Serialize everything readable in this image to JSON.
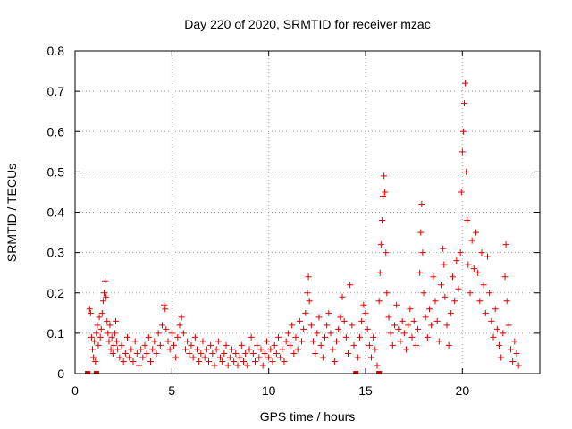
{
  "chart_data": {
    "type": "scatter",
    "title": "Day 220 of 2020, SRMTID for receiver mzac",
    "xlabel": "GPS time / hours",
    "ylabel": "SRMTID / TECUs",
    "xlim": [
      0,
      24
    ],
    "ylim": [
      0,
      0.8
    ],
    "xticks": [
      0,
      5,
      10,
      15,
      20
    ],
    "yticks": [
      0,
      0.1,
      0.2,
      0.3,
      0.4,
      0.5,
      0.6,
      0.7,
      0.8
    ],
    "x_tick_labels": [
      "0",
      "5",
      "10",
      "15",
      "20"
    ],
    "y_tick_labels": [
      "0",
      "0.1",
      "0.2",
      "0.3",
      "0.4",
      "0.5",
      "0.6",
      "0.7",
      "0.8"
    ],
    "grid": true,
    "marker": "+",
    "color": "#dd0000",
    "zero_markers_x": [
      0.65,
      1.1,
      14.5,
      15.7
    ],
    "series": [
      {
        "name": "SRMTID",
        "points": [
          [
            0.75,
            0.16
          ],
          [
            0.8,
            0.15
          ],
          [
            0.85,
            0.09
          ],
          [
            0.9,
            0.06
          ],
          [
            0.95,
            0.04
          ],
          [
            1.0,
            0.08
          ],
          [
            1.05,
            0.03
          ],
          [
            1.1,
            0.1
          ],
          [
            1.15,
            0.12
          ],
          [
            1.2,
            0.07
          ],
          [
            1.25,
            0.14
          ],
          [
            1.3,
            0.09
          ],
          [
            1.35,
            0.11
          ],
          [
            1.4,
            0.15
          ],
          [
            1.45,
            0.18
          ],
          [
            1.5,
            0.2
          ],
          [
            1.55,
            0.23
          ],
          [
            1.6,
            0.19
          ],
          [
            1.65,
            0.13
          ],
          [
            1.7,
            0.1
          ],
          [
            1.75,
            0.08
          ],
          [
            1.8,
            0.12
          ],
          [
            1.85,
            0.06
          ],
          [
            1.9,
            0.09
          ],
          [
            1.95,
            0.05
          ],
          [
            2.0,
            0.07
          ],
          [
            2.05,
            0.1
          ],
          [
            2.1,
            0.13
          ],
          [
            2.15,
            0.08
          ],
          [
            2.2,
            0.06
          ],
          [
            2.3,
            0.04
          ],
          [
            2.4,
            0.07
          ],
          [
            2.5,
            0.03
          ],
          [
            2.6,
            0.05
          ],
          [
            2.7,
            0.09
          ],
          [
            2.8,
            0.04
          ],
          [
            2.9,
            0.06
          ],
          [
            3.0,
            0.03
          ],
          [
            3.1,
            0.08
          ],
          [
            3.2,
            0.05
          ],
          [
            3.3,
            0.02
          ],
          [
            3.4,
            0.06
          ],
          [
            3.5,
            0.04
          ],
          [
            3.6,
            0.07
          ],
          [
            3.7,
            0.05
          ],
          [
            3.8,
            0.09
          ],
          [
            3.9,
            0.03
          ],
          [
            4.0,
            0.06
          ],
          [
            4.1,
            0.08
          ],
          [
            4.2,
            0.05
          ],
          [
            4.3,
            0.1
          ],
          [
            4.4,
            0.07
          ],
          [
            4.5,
            0.12
          ],
          [
            4.6,
            0.17
          ],
          [
            4.65,
            0.16
          ],
          [
            4.7,
            0.11
          ],
          [
            4.8,
            0.08
          ],
          [
            4.9,
            0.06
          ],
          [
            5.0,
            0.1
          ],
          [
            5.1,
            0.07
          ],
          [
            5.2,
            0.04
          ],
          [
            5.3,
            0.09
          ],
          [
            5.4,
            0.12
          ],
          [
            5.5,
            0.14
          ],
          [
            5.6,
            0.1
          ],
          [
            5.7,
            0.06
          ],
          [
            5.8,
            0.08
          ],
          [
            5.9,
            0.05
          ],
          [
            6.0,
            0.07
          ],
          [
            6.1,
            0.04
          ],
          [
            6.2,
            0.09
          ],
          [
            6.3,
            0.06
          ],
          [
            6.4,
            0.03
          ],
          [
            6.5,
            0.05
          ],
          [
            6.6,
            0.08
          ],
          [
            6.7,
            0.04
          ],
          [
            6.8,
            0.06
          ],
          [
            6.9,
            0.03
          ],
          [
            7.0,
            0.07
          ],
          [
            7.1,
            0.05
          ],
          [
            7.2,
            0.02
          ],
          [
            7.3,
            0.06
          ],
          [
            7.4,
            0.08
          ],
          [
            7.5,
            0.04
          ],
          [
            7.6,
            0.03
          ],
          [
            7.7,
            0.05
          ],
          [
            7.8,
            0.07
          ],
          [
            7.9,
            0.02
          ],
          [
            8.0,
            0.04
          ],
          [
            8.1,
            0.06
          ],
          [
            8.2,
            0.03
          ],
          [
            8.3,
            0.05
          ],
          [
            8.4,
            0.02
          ],
          [
            8.5,
            0.04
          ],
          [
            8.6,
            0.07
          ],
          [
            8.7,
            0.03
          ],
          [
            8.8,
            0.05
          ],
          [
            8.9,
            0.02
          ],
          [
            9.0,
            0.06
          ],
          [
            9.1,
            0.09
          ],
          [
            9.2,
            0.05
          ],
          [
            9.3,
            0.03
          ],
          [
            9.4,
            0.07
          ],
          [
            9.5,
            0.04
          ],
          [
            9.6,
            0.06
          ],
          [
            9.7,
            0.02
          ],
          [
            9.8,
            0.05
          ],
          [
            9.9,
            0.08
          ],
          [
            10.0,
            0.04
          ],
          [
            10.1,
            0.06
          ],
          [
            10.2,
            0.03
          ],
          [
            10.3,
            0.07
          ],
          [
            10.4,
            0.05
          ],
          [
            10.5,
            0.09
          ],
          [
            10.6,
            0.04
          ],
          [
            10.7,
            0.06
          ],
          [
            10.8,
            0.03
          ],
          [
            10.9,
            0.08
          ],
          [
            11.0,
            0.1
          ],
          [
            11.1,
            0.07
          ],
          [
            11.2,
            0.12
          ],
          [
            11.3,
            0.05
          ],
          [
            11.4,
            0.09
          ],
          [
            11.5,
            0.06
          ],
          [
            11.6,
            0.13
          ],
          [
            11.7,
            0.08
          ],
          [
            11.8,
            0.11
          ],
          [
            11.9,
            0.15
          ],
          [
            12.0,
            0.2
          ],
          [
            12.05,
            0.24
          ],
          [
            12.1,
            0.18
          ],
          [
            12.2,
            0.12
          ],
          [
            12.3,
            0.08
          ],
          [
            12.4,
            0.05
          ],
          [
            12.5,
            0.1
          ],
          [
            12.6,
            0.14
          ],
          [
            12.7,
            0.07
          ],
          [
            12.8,
            0.04
          ],
          [
            12.9,
            0.09
          ],
          [
            13.0,
            0.12
          ],
          [
            13.1,
            0.15
          ],
          [
            13.2,
            0.1
          ],
          [
            13.3,
            0.06
          ],
          [
            13.4,
            0.03
          ],
          [
            13.5,
            0.08
          ],
          [
            13.6,
            0.11
          ],
          [
            13.7,
            0.14
          ],
          [
            13.8,
            0.19
          ],
          [
            13.9,
            0.13
          ],
          [
            14.0,
            0.09
          ],
          [
            14.1,
            0.05
          ],
          [
            14.2,
            0.22
          ],
          [
            14.3,
            0.12
          ],
          [
            14.4,
            0.07
          ],
          [
            14.6,
            0.04
          ],
          [
            14.7,
            0.09
          ],
          [
            14.8,
            0.13
          ],
          [
            14.9,
            0.17
          ],
          [
            15.0,
            0.15
          ],
          [
            15.1,
            0.11
          ],
          [
            15.2,
            0.07
          ],
          [
            15.3,
            0.04
          ],
          [
            15.4,
            0.09
          ],
          [
            15.5,
            0.06
          ],
          [
            15.6,
            0.02
          ],
          [
            15.7,
            0.18
          ],
          [
            15.75,
            0.25
          ],
          [
            15.8,
            0.32
          ],
          [
            15.85,
            0.38
          ],
          [
            15.9,
            0.44
          ],
          [
            15.95,
            0.49
          ],
          [
            16.0,
            0.45
          ],
          [
            16.05,
            0.3
          ],
          [
            16.1,
            0.2
          ],
          [
            16.2,
            0.14
          ],
          [
            16.3,
            0.1
          ],
          [
            16.4,
            0.07
          ],
          [
            16.5,
            0.12
          ],
          [
            16.6,
            0.17
          ],
          [
            16.7,
            0.11
          ],
          [
            16.8,
            0.08
          ],
          [
            16.9,
            0.13
          ],
          [
            17.0,
            0.1
          ],
          [
            17.1,
            0.06
          ],
          [
            17.2,
            0.12
          ],
          [
            17.3,
            0.16
          ],
          [
            17.4,
            0.09
          ],
          [
            17.5,
            0.13
          ],
          [
            17.6,
            0.07
          ],
          [
            17.7,
            0.11
          ],
          [
            17.8,
            0.25
          ],
          [
            17.85,
            0.35
          ],
          [
            17.9,
            0.42
          ],
          [
            17.95,
            0.3
          ],
          [
            18.0,
            0.2
          ],
          [
            18.1,
            0.14
          ],
          [
            18.2,
            0.09
          ],
          [
            18.3,
            0.16
          ],
          [
            18.4,
            0.12
          ],
          [
            18.5,
            0.24
          ],
          [
            18.6,
            0.18
          ],
          [
            18.7,
            0.13
          ],
          [
            18.8,
            0.08
          ],
          [
            18.9,
            0.22
          ],
          [
            19.0,
            0.31
          ],
          [
            19.05,
            0.27
          ],
          [
            19.1,
            0.19
          ],
          [
            19.2,
            0.12
          ],
          [
            19.3,
            0.07
          ],
          [
            19.4,
            0.15
          ],
          [
            19.5,
            0.24
          ],
          [
            19.6,
            0.18
          ],
          [
            19.7,
            0.28
          ],
          [
            19.8,
            0.21
          ],
          [
            19.9,
            0.3
          ],
          [
            19.95,
            0.45
          ],
          [
            20.0,
            0.55
          ],
          [
            20.05,
            0.6
          ],
          [
            20.1,
            0.67
          ],
          [
            20.15,
            0.72
          ],
          [
            20.2,
            0.5
          ],
          [
            20.25,
            0.38
          ],
          [
            20.3,
            0.27
          ],
          [
            20.4,
            0.2
          ],
          [
            20.5,
            0.33
          ],
          [
            20.6,
            0.26
          ],
          [
            20.7,
            0.35
          ],
          [
            20.8,
            0.25
          ],
          [
            20.9,
            0.18
          ],
          [
            21.0,
            0.3
          ],
          [
            21.1,
            0.22
          ],
          [
            21.2,
            0.15
          ],
          [
            21.3,
            0.29
          ],
          [
            21.4,
            0.2
          ],
          [
            21.5,
            0.13
          ],
          [
            21.6,
            0.09
          ],
          [
            21.7,
            0.16
          ],
          [
            21.8,
            0.11
          ],
          [
            21.9,
            0.07
          ],
          [
            22.0,
            0.04
          ],
          [
            22.1,
            0.1
          ],
          [
            22.2,
            0.24
          ],
          [
            22.25,
            0.32
          ],
          [
            22.3,
            0.18
          ],
          [
            22.4,
            0.12
          ],
          [
            22.5,
            0.06
          ],
          [
            22.6,
            0.03
          ],
          [
            22.7,
            0.08
          ],
          [
            22.8,
            0.05
          ],
          [
            22.9,
            0.02
          ]
        ]
      }
    ]
  }
}
